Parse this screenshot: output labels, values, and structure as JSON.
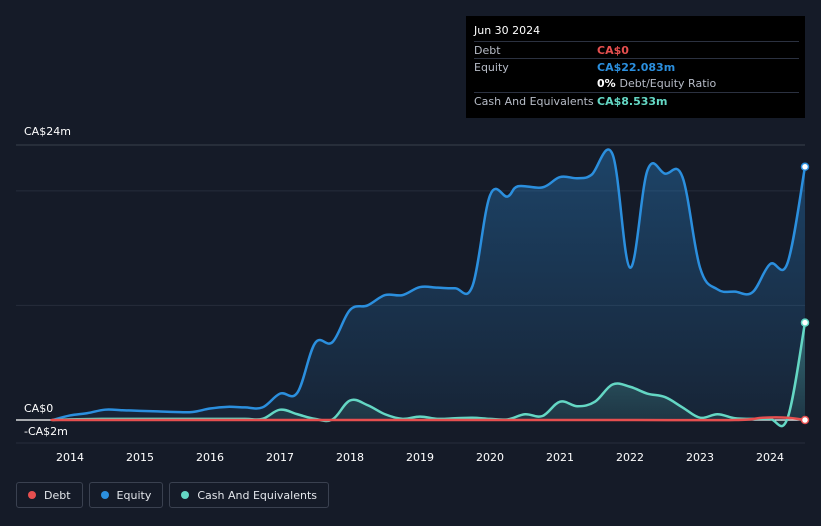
{
  "tooltip": {
    "date": "Jun 30 2024",
    "debt_label": "Debt",
    "debt_value": "CA$0",
    "equity_label": "Equity",
    "equity_value": "CA$22.083m",
    "ratio_value": "0%",
    "ratio_label": "Debt/Equity Ratio",
    "cash_label": "Cash And Equivalents",
    "cash_value": "CA$8.533m"
  },
  "legend": [
    {
      "label": "Debt",
      "color": "#e64f4f"
    },
    {
      "label": "Equity",
      "color": "#2b8fde"
    },
    {
      "label": "Cash And Equivalents",
      "color": "#64d7c4"
    }
  ],
  "colors": {
    "debt": "#e64f4f",
    "equity": "#2b8fde",
    "cash": "#64d7c4",
    "background": "#151b28"
  },
  "chart_data": {
    "type": "area",
    "title": "",
    "xlabel": "",
    "ylabel": "",
    "y_top_label": "CA$24m",
    "y_zero_label": "CA$0",
    "y_bottom_label": "-CA$2m",
    "ylim": [
      -2,
      24
    ],
    "xlim": [
      2013.7,
      2024.5
    ],
    "x_ticks": [
      2014,
      2015,
      2016,
      2017,
      2018,
      2019,
      2020,
      2021,
      2022,
      2023,
      2024
    ],
    "x_tick_labels": [
      "2014",
      "2015",
      "2016",
      "2017",
      "2018",
      "2019",
      "2020",
      "2021",
      "2022",
      "2023",
      "2024"
    ],
    "series": [
      {
        "name": "Equity",
        "points": [
          [
            2013.75,
            0.0
          ],
          [
            2014.0,
            0.4
          ],
          [
            2014.25,
            0.6
          ],
          [
            2014.5,
            0.9
          ],
          [
            2014.75,
            0.85
          ],
          [
            2015.0,
            0.8
          ],
          [
            2015.25,
            0.75
          ],
          [
            2015.5,
            0.7
          ],
          [
            2015.75,
            0.7
          ],
          [
            2016.0,
            1.0
          ],
          [
            2016.25,
            1.15
          ],
          [
            2016.5,
            1.1
          ],
          [
            2016.75,
            1.1
          ],
          [
            2017.0,
            2.3
          ],
          [
            2017.25,
            2.4
          ],
          [
            2017.5,
            6.7
          ],
          [
            2017.75,
            6.8
          ],
          [
            2018.0,
            9.6
          ],
          [
            2018.25,
            10.0
          ],
          [
            2018.5,
            10.9
          ],
          [
            2018.75,
            10.9
          ],
          [
            2019.0,
            11.6
          ],
          [
            2019.25,
            11.55
          ],
          [
            2019.5,
            11.5
          ],
          [
            2019.75,
            11.7
          ],
          [
            2020.0,
            19.6
          ],
          [
            2020.25,
            19.5
          ],
          [
            2020.4,
            20.4
          ],
          [
            2020.75,
            20.3
          ],
          [
            2021.0,
            21.2
          ],
          [
            2021.25,
            21.1
          ],
          [
            2021.45,
            21.4
          ],
          [
            2021.75,
            23.2
          ],
          [
            2022.0,
            13.3
          ],
          [
            2022.25,
            21.8
          ],
          [
            2022.5,
            21.5
          ],
          [
            2022.75,
            21.2
          ],
          [
            2023.0,
            13.3
          ],
          [
            2023.25,
            11.4
          ],
          [
            2023.5,
            11.2
          ],
          [
            2023.75,
            11.15
          ],
          [
            2024.0,
            13.6
          ],
          [
            2024.25,
            13.7
          ],
          [
            2024.5,
            22.1
          ]
        ]
      },
      {
        "name": "Cash And Equivalents",
        "points": [
          [
            2013.75,
            0.0
          ],
          [
            2014.0,
            0.05
          ],
          [
            2014.5,
            0.1
          ],
          [
            2015.0,
            0.1
          ],
          [
            2015.5,
            0.1
          ],
          [
            2016.0,
            0.1
          ],
          [
            2016.5,
            0.1
          ],
          [
            2016.75,
            0.1
          ],
          [
            2017.0,
            0.9
          ],
          [
            2017.25,
            0.5
          ],
          [
            2017.5,
            0.1
          ],
          [
            2017.75,
            0.05
          ],
          [
            2018.0,
            1.7
          ],
          [
            2018.25,
            1.3
          ],
          [
            2018.5,
            0.5
          ],
          [
            2018.75,
            0.1
          ],
          [
            2019.0,
            0.3
          ],
          [
            2019.25,
            0.1
          ],
          [
            2019.5,
            0.15
          ],
          [
            2019.75,
            0.2
          ],
          [
            2020.0,
            0.1
          ],
          [
            2020.25,
            0.05
          ],
          [
            2020.5,
            0.5
          ],
          [
            2020.75,
            0.35
          ],
          [
            2021.0,
            1.6
          ],
          [
            2021.25,
            1.2
          ],
          [
            2021.5,
            1.6
          ],
          [
            2021.75,
            3.1
          ],
          [
            2022.0,
            2.9
          ],
          [
            2022.25,
            2.3
          ],
          [
            2022.5,
            2.0
          ],
          [
            2022.75,
            1.1
          ],
          [
            2023.0,
            0.2
          ],
          [
            2023.25,
            0.5
          ],
          [
            2023.5,
            0.15
          ],
          [
            2023.75,
            0.1
          ],
          [
            2024.0,
            0.1
          ],
          [
            2024.25,
            0.15
          ],
          [
            2024.5,
            8.5
          ]
        ]
      },
      {
        "name": "Debt",
        "points": [
          [
            2013.75,
            0.0
          ],
          [
            2014.0,
            0.0
          ],
          [
            2016.0,
            0.0
          ],
          [
            2018.0,
            0.0
          ],
          [
            2020.0,
            0.0
          ],
          [
            2022.0,
            0.0
          ],
          [
            2023.5,
            0.0
          ],
          [
            2023.9,
            0.2
          ],
          [
            2024.25,
            0.2
          ],
          [
            2024.5,
            0.0
          ]
        ]
      }
    ]
  }
}
